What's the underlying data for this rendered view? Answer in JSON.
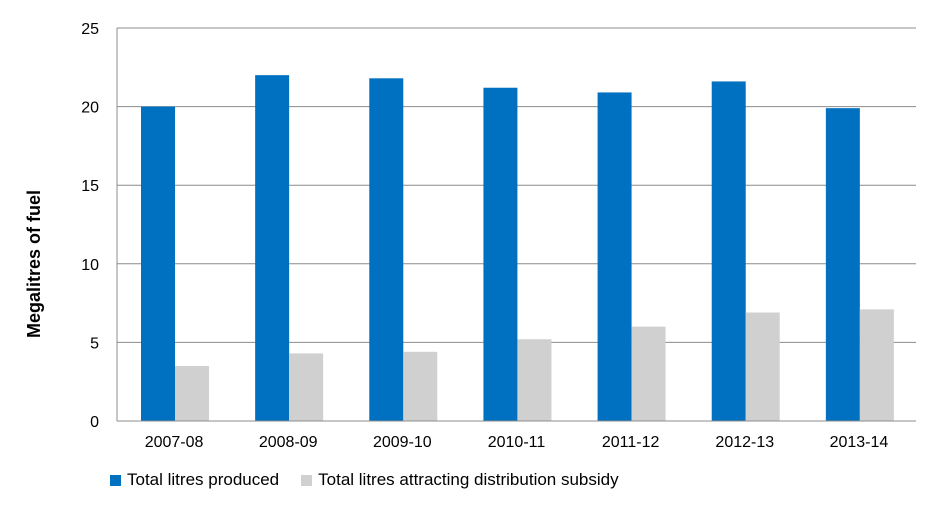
{
  "chart_data": {
    "type": "bar",
    "categories": [
      "2007-08",
      "2008-09",
      "2009-10",
      "2010-11",
      "2011-12",
      "2012-13",
      "2013-14"
    ],
    "series": [
      {
        "name": "Total litres produced",
        "color": "#0070c0",
        "values": [
          20.0,
          22.0,
          21.8,
          21.2,
          20.9,
          21.6,
          19.9
        ]
      },
      {
        "name": "Total litres attracting distribution subsidy",
        "color": "#d0d0d0",
        "values": [
          3.5,
          4.3,
          4.4,
          5.2,
          6.0,
          6.9,
          7.1
        ]
      }
    ],
    "ylabel": "Megalitres of fuel",
    "xlabel": "",
    "ylim": [
      0,
      25
    ],
    "yticks": [
      "0",
      "5",
      "10",
      "15",
      "20",
      "25"
    ],
    "grid": true,
    "legend_position": "bottom-left"
  }
}
